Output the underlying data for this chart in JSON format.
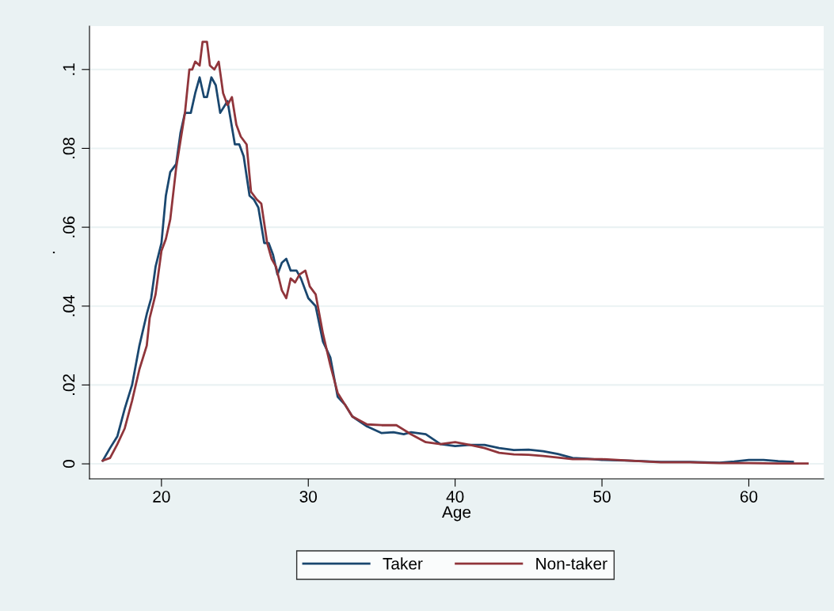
{
  "chart_data": {
    "type": "line",
    "xlabel": "Age",
    "ylabel": ".",
    "xlim": [
      15.1,
      65.1
    ],
    "xticks": [
      20,
      30,
      40,
      50,
      60
    ],
    "ylim": [
      -0.0038,
      0.111
    ],
    "yticks": [
      0,
      {
        "value": 0.02,
        "label": ".02"
      },
      {
        "value": 0.04,
        "label": ".04"
      },
      {
        "value": 0.06,
        "label": ".06"
      },
      {
        "value": 0.08,
        "label": ".08"
      },
      {
        "value": 0.1,
        "label": ".1"
      }
    ],
    "grid": "y",
    "legend": "bottom",
    "line_style": "solid",
    "marker": "none",
    "series": [
      {
        "name": "Taker",
        "color": "#1a476f",
        "x": [
          16,
          16.5,
          17,
          17.5,
          18,
          18.5,
          19,
          19.3,
          19.6,
          20,
          20.3,
          20.6,
          21,
          21.3,
          21.6,
          22,
          22.3,
          22.6,
          22.9,
          23.1,
          23.4,
          23.7,
          24,
          24.5,
          25,
          25.3,
          25.6,
          26,
          26.3,
          26.6,
          27,
          27.3,
          27.6,
          27.9,
          28.2,
          28.5,
          28.8,
          29.2,
          29.5,
          30,
          30.5,
          31,
          31.5,
          32,
          32.5,
          33,
          34,
          35,
          35.8,
          36.5,
          37,
          38,
          39,
          40,
          41,
          42,
          43,
          44,
          45,
          46,
          47,
          48,
          49,
          50,
          52,
          54,
          56,
          58,
          59,
          60,
          61,
          62,
          63
        ],
        "values": [
          0.0008,
          0.004,
          0.007,
          0.014,
          0.02,
          0.03,
          0.038,
          0.042,
          0.05,
          0.056,
          0.068,
          0.074,
          0.076,
          0.084,
          0.089,
          0.089,
          0.094,
          0.098,
          0.093,
          0.093,
          0.098,
          0.096,
          0.089,
          0.092,
          0.081,
          0.081,
          0.078,
          0.068,
          0.067,
          0.065,
          0.056,
          0.056,
          0.053,
          0.048,
          0.051,
          0.052,
          0.049,
          0.049,
          0.047,
          0.042,
          0.04,
          0.031,
          0.027,
          0.017,
          0.015,
          0.012,
          0.0095,
          0.0078,
          0.008,
          0.0075,
          0.008,
          0.0075,
          0.005,
          0.0045,
          0.0048,
          0.0048,
          0.004,
          0.0035,
          0.0036,
          0.0032,
          0.0025,
          0.0015,
          0.0013,
          0.001,
          0.0008,
          0.0005,
          0.0005,
          0.0003,
          0.0006,
          0.001,
          0.001,
          0.0007,
          0.0005
        ]
      },
      {
        "name": "Non-taker",
        "color": "#90353b",
        "x": [
          16,
          16.5,
          17,
          17.5,
          18,
          18.5,
          19,
          19.2,
          19.6,
          20,
          20.3,
          20.6,
          21,
          21.3,
          21.6,
          21.9,
          22.1,
          22.3,
          22.6,
          22.8,
          23.1,
          23.3,
          23.6,
          23.9,
          24.2,
          24.5,
          24.8,
          25.1,
          25.4,
          25.8,
          26.1,
          26.5,
          26.8,
          27.2,
          27.5,
          27.8,
          28.2,
          28.5,
          28.8,
          29.1,
          29.4,
          29.8,
          30.1,
          30.5,
          31,
          31.5,
          32,
          32.5,
          33,
          34,
          35,
          36,
          37,
          38,
          39,
          40,
          41,
          42,
          43,
          44,
          45,
          46,
          47,
          48,
          50,
          52,
          54,
          56,
          58,
          60,
          62,
          64
        ],
        "values": [
          0.0008,
          0.0015,
          0.005,
          0.009,
          0.016,
          0.024,
          0.03,
          0.037,
          0.043,
          0.054,
          0.057,
          0.062,
          0.075,
          0.082,
          0.089,
          0.1,
          0.1,
          0.102,
          0.101,
          0.107,
          0.107,
          0.101,
          0.1,
          0.102,
          0.094,
          0.091,
          0.093,
          0.086,
          0.083,
          0.081,
          0.069,
          0.067,
          0.066,
          0.056,
          0.052,
          0.05,
          0.044,
          0.042,
          0.047,
          0.046,
          0.048,
          0.049,
          0.045,
          0.043,
          0.033,
          0.025,
          0.018,
          0.015,
          0.012,
          0.01,
          0.0098,
          0.0098,
          0.0075,
          0.0055,
          0.005,
          0.0055,
          0.0048,
          0.004,
          0.0028,
          0.0024,
          0.0023,
          0.002,
          0.0016,
          0.0012,
          0.0012,
          0.0008,
          0.0004,
          0.0004,
          0.0002,
          0.0002,
          0.0001,
          0.0001
        ]
      }
    ]
  }
}
